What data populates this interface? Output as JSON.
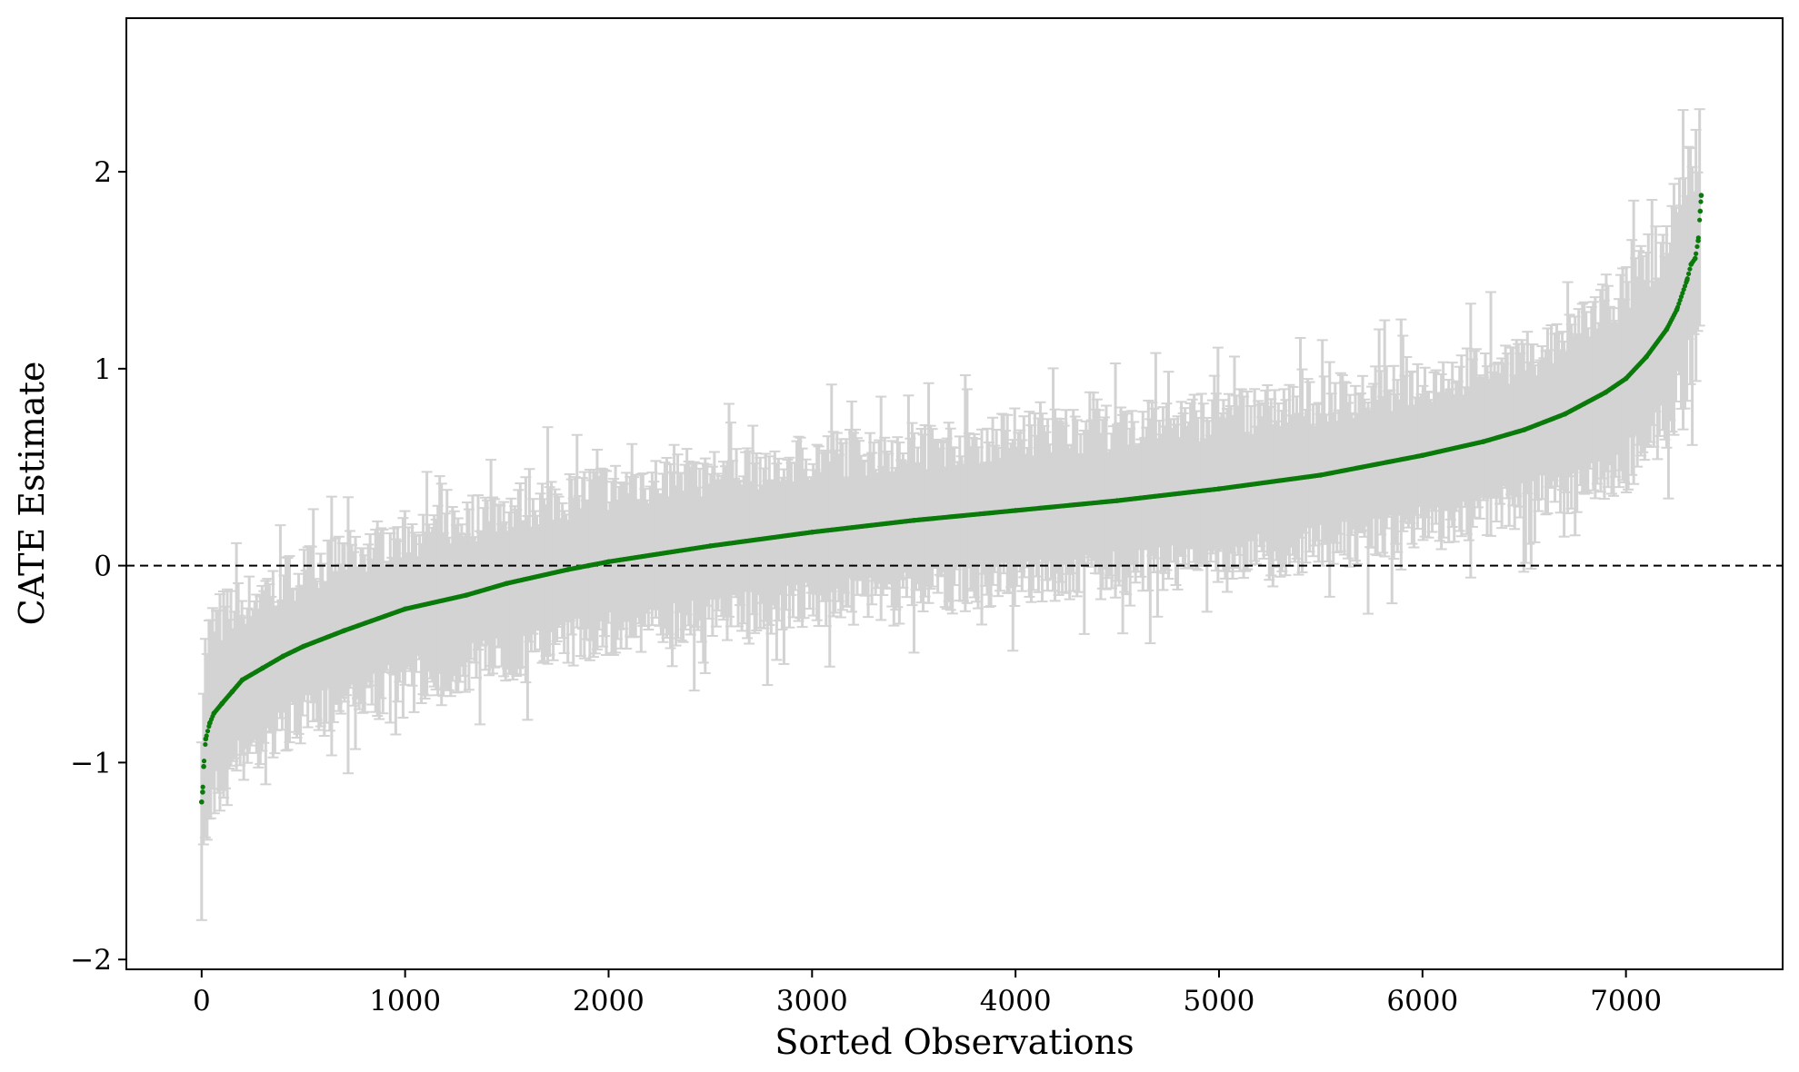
{
  "chart_data": {
    "type": "scatter",
    "title": "",
    "xlabel": "Sorted Observations",
    "ylabel": "CATE Estimate",
    "xlim": [
      -370,
      7770
    ],
    "ylim": [
      -2.05,
      2.78
    ],
    "x_ticks": [
      0,
      1000,
      2000,
      3000,
      4000,
      5000,
      6000,
      7000
    ],
    "y_ticks": [
      -2,
      -1,
      0,
      1,
      2
    ],
    "x_tick_labels": [
      "0",
      "1000",
      "2000",
      "3000",
      "4000",
      "5000",
      "6000",
      "7000"
    ],
    "y_tick_labels": [
      "−2",
      "−1",
      "0",
      "1",
      "2"
    ],
    "grid": false,
    "legend": "none",
    "n_observations": 7370,
    "reference_line": {
      "y": 0,
      "style": "dashed"
    },
    "series": [
      {
        "kind": "point-estimates",
        "x": [
          0,
          5,
          10,
          20,
          40,
          60,
          100,
          150,
          200,
          300,
          400,
          500,
          700,
          1000,
          1300,
          1500,
          1800,
          1900,
          2000,
          2500,
          3000,
          3500,
          4000,
          4500,
          5000,
          5500,
          6000,
          6300,
          6500,
          6700,
          6900,
          7000,
          7100,
          7200,
          7250,
          7300,
          7320,
          7340,
          7355,
          7365,
          7370
        ],
        "y": [
          -1.2,
          -1.15,
          -1.02,
          -0.88,
          -0.8,
          -0.75,
          -0.7,
          -0.64,
          -0.58,
          -0.52,
          -0.46,
          -0.41,
          -0.33,
          -0.22,
          -0.15,
          -0.09,
          -0.02,
          0.0,
          0.02,
          0.1,
          0.17,
          0.23,
          0.28,
          0.33,
          0.39,
          0.46,
          0.56,
          0.63,
          0.69,
          0.77,
          0.88,
          0.95,
          1.06,
          1.2,
          1.3,
          1.45,
          1.53,
          1.56,
          1.65,
          1.8,
          1.88
        ],
        "color": "#0a7a0a"
      },
      {
        "kind": "error-bars",
        "description_of_interval": "per-observation interval around estimate",
        "typical_half_width": 0.45,
        "max_extent": [
          -1.8,
          2.52
        ],
        "color": "#d3d3d3"
      }
    ]
  }
}
